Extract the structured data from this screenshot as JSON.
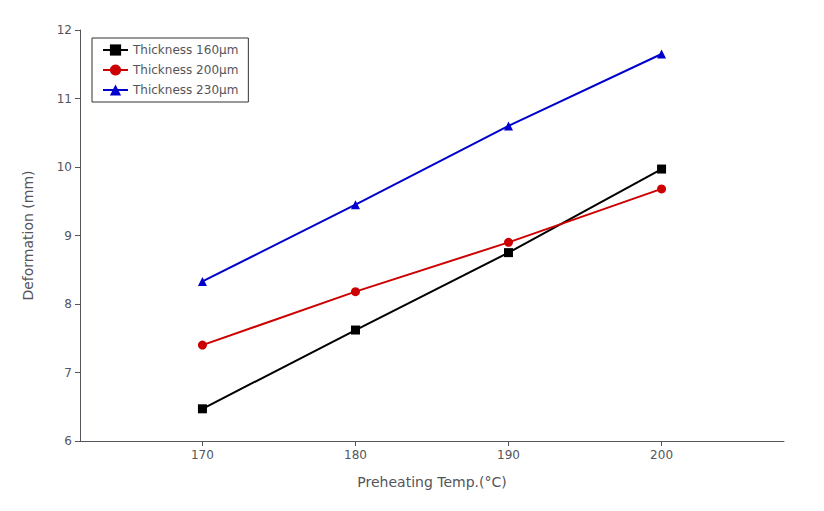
{
  "chart_data": {
    "type": "line",
    "x": [
      170,
      180,
      190,
      200
    ],
    "series": [
      {
        "name": "Thickness 160μm",
        "color": "#000000",
        "marker": "square",
        "values": [
          6.47,
          7.62,
          8.75,
          9.97
        ]
      },
      {
        "name": "Thickness 200μm",
        "color": "#cc0000",
        "marker": "circle",
        "values": [
          7.4,
          8.18,
          8.9,
          9.68
        ]
      },
      {
        "name": "Thickness 230μm",
        "color": "#0000cc",
        "marker": "triangle",
        "values": [
          8.33,
          9.45,
          10.6,
          11.65
        ]
      }
    ],
    "xlabel": "Preheating Temp.(°C)",
    "ylabel": "Deformation (mm)",
    "xlim": [
      162,
      208
    ],
    "ylim": [
      6.0,
      12.0
    ],
    "xticks": [
      170,
      180,
      190,
      200
    ],
    "yticks": [
      6,
      7,
      8,
      9,
      10,
      11,
      12
    ],
    "legend": "upper left",
    "grid": false
  }
}
